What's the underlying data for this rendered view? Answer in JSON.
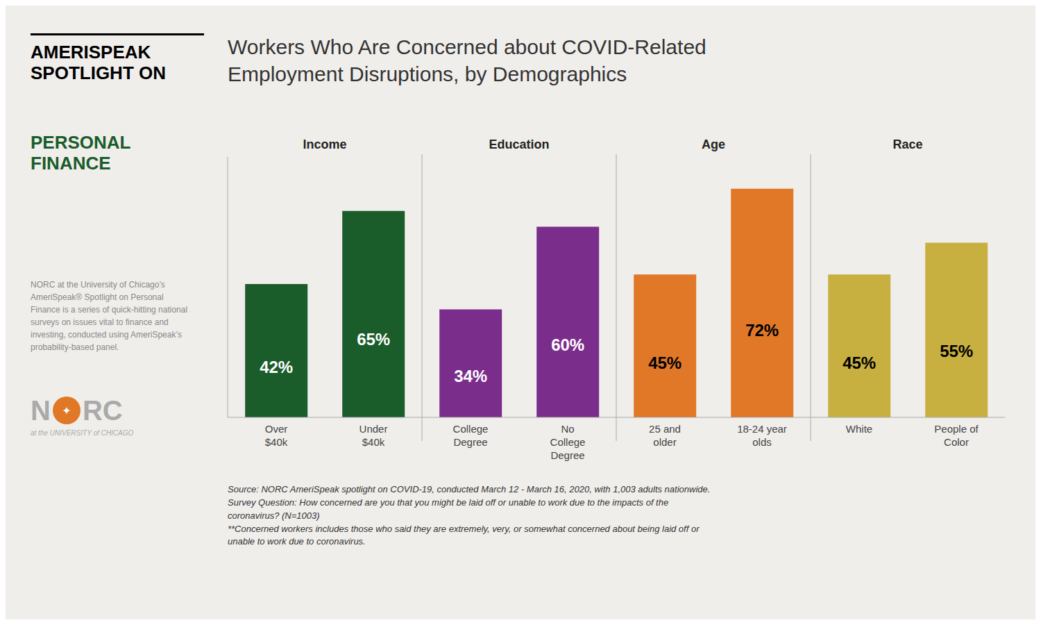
{
  "chart_data": {
    "type": "bar",
    "title": "Workers Who Are Concerned about COVID-Related\nEmployment Disruptions, by Demographics",
    "groups": [
      "Income",
      "Education",
      "Age",
      "Race"
    ],
    "categories": [
      "Over\n$40k",
      "Under\n$40k",
      "College\nDegree",
      "No\nCollege\nDegree",
      "25 and\nolder",
      "18-24 year\nolds",
      "White",
      "People of\nColor"
    ],
    "values": [
      42,
      65,
      34,
      60,
      45,
      72,
      45,
      55
    ],
    "value_labels": [
      "42%",
      "65%",
      "34%",
      "60%",
      "45%",
      "72%",
      "45%",
      "55%"
    ],
    "data_labels": true,
    "colors": [
      "#1a5c2a",
      "#1a5c2a",
      "#7b2d8b",
      "#7b2d8b",
      "#e07828",
      "#e07828",
      "#c8b040",
      "#c8b040"
    ],
    "ylim": [
      0,
      82
    ],
    "tick_labels": "x",
    "grid": false,
    "annotations": [
      "AMERISPEAK\nSPOTLIGHT ON",
      "PERSONAL\nFINANCE",
      "NORC at the University of Chicago’s\nAmeriSpeak® Spotlight on Personal\nFinance is a series of quick-hitting national\nsurveys on issues vital to finance and\ninvesting, conducted using AmeriSpeak’s\nprobability-based panel.",
      "N",
      "✦",
      "RC",
      "at the UNIVERSITY of CHICAGO",
      "Source: NORC AmeriSpeak spotlight on COVID-19, conducted March 12 - March 16, 2020, with 1,003 adults nationwide.\nSurvey Question: How concerned are you that you might be laid off or unable to work due to the impacts of the\ncoronavirus? (N=1003)\n**Concerned workers includes those who said they are extremely, very, or somewhat concerned about being laid off or\nunable to work due to coronavirus."
    ]
  }
}
